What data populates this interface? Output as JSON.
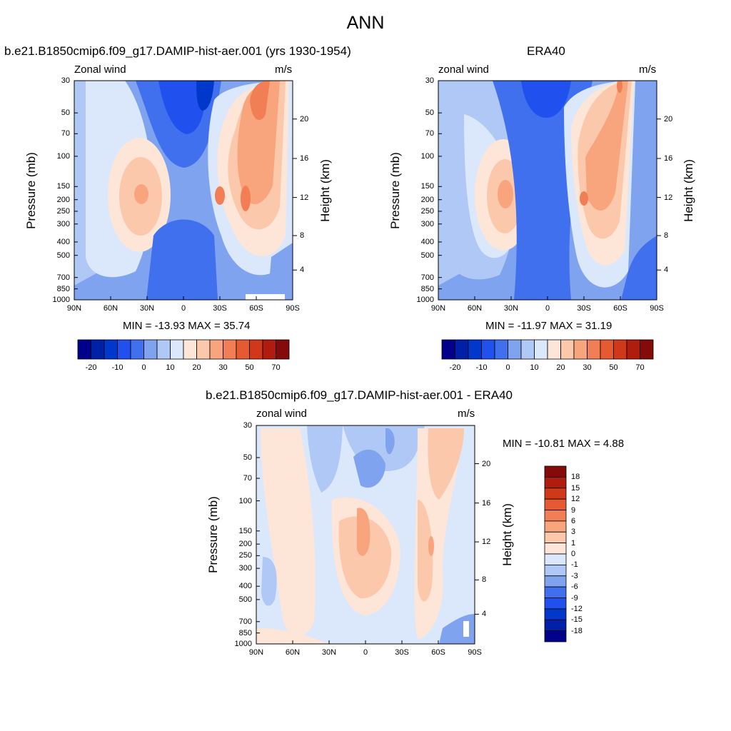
{
  "figure_title": "ANN",
  "panels": [
    {
      "title": "b.e21.B1850cmip6.f09_g17.DAMIP-hist-aer.001 (yrs 1930-1954)",
      "left_label": "Zonal wind",
      "right_label": "m/s",
      "minmax": "MIN = -13.93  MAX =  35.74",
      "ylabel": "Pressure (mb)",
      "ylabel_right": "Height (km)"
    },
    {
      "title": "ERA40",
      "left_label": "zonal wind",
      "right_label": "m/s",
      "minmax": "MIN = -11.97  MAX =  31.19",
      "ylabel": "Pressure (mb)",
      "ylabel_right": "Height (km)"
    },
    {
      "title": "b.e21.B1850cmip6.f09_g17.DAMIP-hist-aer.001 - ERA40",
      "left_label": "zonal wind",
      "right_label": "m/s",
      "minmax": "MIN = -10.81  MAX =   4.88",
      "ylabel": "Pressure (mb)",
      "ylabel_right": "Height (km)"
    }
  ],
  "colorbar_main": {
    "colors": [
      "#00008b",
      "#0020a8",
      "#0038cc",
      "#2050ee",
      "#4070ee",
      "#7fa3ee",
      "#b0c8f5",
      "#dbe8fb",
      "#fde5d8",
      "#fbc8ac",
      "#f8a57e",
      "#f27e55",
      "#e55a30",
      "#d0381a",
      "#b01c0e",
      "#850a0a"
    ],
    "labels": [
      "-20",
      "-10",
      "0",
      "10",
      "20",
      "30",
      "50",
      "70"
    ]
  },
  "colorbar_diff": {
    "colors": [
      "#00008b",
      "#0020a8",
      "#0038cc",
      "#2050ee",
      "#4070ee",
      "#7fa3ee",
      "#b0c8f5",
      "#dbe8fb",
      "#fde5d8",
      "#fbc8ac",
      "#f8a57e",
      "#f27e55",
      "#e55a30",
      "#d0381a",
      "#b01c0e",
      "#850a0a"
    ],
    "labels": [
      "-18",
      "-15",
      "-12",
      "-9",
      "-6",
      "-3",
      "-1",
      "0",
      "1",
      "3",
      "6",
      "9",
      "12",
      "15",
      "18"
    ]
  },
  "chart_data": [
    {
      "type": "heatmap",
      "title": "b.e21.B1850cmip6.f09_g17.DAMIP-hist-aer.001 (yrs 1930-1954)",
      "variable": "Zonal wind",
      "units": "m/s",
      "x_ticks": [
        "90N",
        "60N",
        "30N",
        "0",
        "30S",
        "60S",
        "90S"
      ],
      "y_ticks": [
        "30",
        "50",
        "70",
        "100",
        "150",
        "200",
        "250",
        "300",
        "400",
        "500",
        "700",
        "850",
        "1000"
      ],
      "y_right_ticks": [
        "4",
        "8",
        "12",
        "16",
        "20"
      ],
      "xlabel": "",
      "ylabel": "Pressure (mb)",
      "ylabel_right": "Height (km)",
      "min": -13.93,
      "max": 35.74,
      "levels": [
        -20,
        -15,
        -10,
        -5,
        0,
        5,
        10,
        15,
        20,
        25,
        30,
        40,
        50,
        60,
        70
      ]
    },
    {
      "type": "heatmap",
      "title": "ERA40",
      "variable": "zonal wind",
      "units": "m/s",
      "x_ticks": [
        "90N",
        "60N",
        "30N",
        "0",
        "30S",
        "60S",
        "90S"
      ],
      "y_ticks": [
        "30",
        "50",
        "70",
        "100",
        "150",
        "200",
        "250",
        "300",
        "400",
        "500",
        "700",
        "850",
        "1000"
      ],
      "y_right_ticks": [
        "4",
        "8",
        "12",
        "16",
        "20"
      ],
      "xlabel": "",
      "ylabel": "Pressure (mb)",
      "ylabel_right": "Height (km)",
      "min": -11.97,
      "max": 31.19,
      "levels": [
        -20,
        -15,
        -10,
        -5,
        0,
        5,
        10,
        15,
        20,
        25,
        30,
        40,
        50,
        60,
        70
      ]
    },
    {
      "type": "heatmap",
      "title": "b.e21.B1850cmip6.f09_g17.DAMIP-hist-aer.001 - ERA40",
      "variable": "zonal wind",
      "units": "m/s",
      "x_ticks": [
        "90N",
        "60N",
        "30N",
        "0",
        "30S",
        "60S",
        "90S"
      ],
      "y_ticks": [
        "30",
        "50",
        "70",
        "100",
        "150",
        "200",
        "250",
        "300",
        "400",
        "500",
        "700",
        "850",
        "1000"
      ],
      "y_right_ticks": [
        "4",
        "8",
        "12",
        "16",
        "20"
      ],
      "xlabel": "",
      "ylabel": "Pressure (mb)",
      "ylabel_right": "Height (km)",
      "min": -10.81,
      "max": 4.88,
      "levels": [
        -18,
        -15,
        -12,
        -9,
        -6,
        -3,
        -1,
        0,
        1,
        3,
        6,
        9,
        12,
        15,
        18
      ]
    }
  ]
}
